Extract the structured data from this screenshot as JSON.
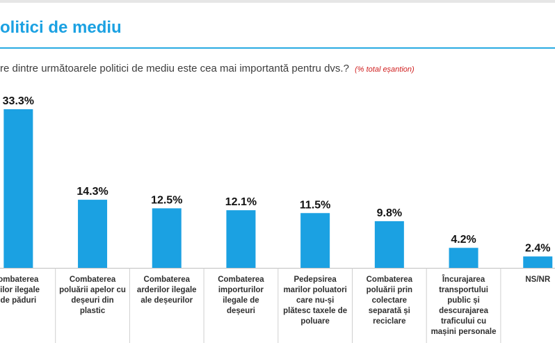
{
  "header": {
    "title": "olitici de mediu",
    "question": "re dintre următoarele politici de mediu este cea mai importantă pentru dvs.?",
    "note": "(% total eșantion)"
  },
  "chart_data": {
    "type": "bar",
    "title": "",
    "xlabel": "",
    "ylabel": "",
    "ylim": [
      0,
      33.3
    ],
    "color": "#1ba1e2",
    "categories": [
      [
        "ombaterea",
        "rilor ilegale",
        "de păduri"
      ],
      [
        "Combaterea",
        "poluării apelor cu",
        "deșeuri din",
        "plastic"
      ],
      [
        "Combaterea",
        "arderilor ilegale",
        "ale deșeurilor"
      ],
      [
        "Combaterea",
        "importurilor",
        "ilegale de",
        "deșeuri"
      ],
      [
        "Pedepsirea",
        "marilor poluatori",
        "care nu-și",
        "plătesc taxele de",
        "poluare"
      ],
      [
        "Combaterea",
        "poluării prin",
        "colectare",
        "separată și",
        "reciclare"
      ],
      [
        "Încurajarea",
        "transportului",
        "public și",
        "descurajarea",
        "traficului cu",
        "mașini personale"
      ],
      [
        "NS/NR"
      ]
    ],
    "values": [
      33.3,
      14.3,
      12.5,
      12.1,
      11.5,
      9.8,
      4.2,
      2.4
    ],
    "value_labels": [
      "33.3%",
      "14.3%",
      "12.5%",
      "12.1%",
      "11.5%",
      "9.8%",
      "4.2%",
      "2.4%"
    ]
  }
}
